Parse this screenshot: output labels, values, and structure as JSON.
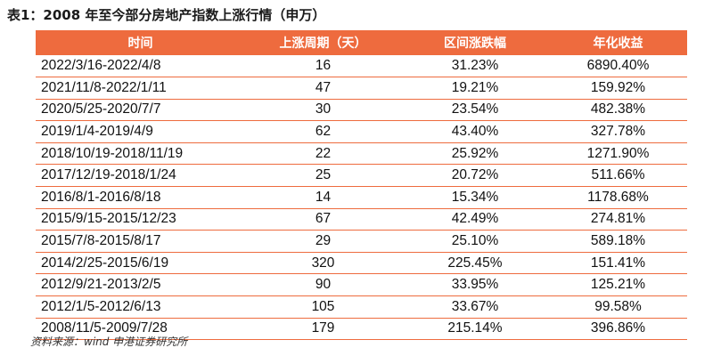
{
  "caption": "表1：2008 年至今部分房地产指数上涨行情（申万）",
  "table": {
    "headers": [
      "时间",
      "上涨周期（天）",
      "区间涨跌幅",
      "年化收益"
    ],
    "rows": [
      [
        "2022/3/16-2022/4/8",
        "16",
        "31.23%",
        "6890.40%"
      ],
      [
        "2021/11/8-2022/1/11",
        "47",
        "19.21%",
        "159.92%"
      ],
      [
        "2020/5/25-2020/7/7",
        "30",
        "23.54%",
        "482.38%"
      ],
      [
        "2019/1/4-2019/4/9",
        "62",
        "43.40%",
        "327.78%"
      ],
      [
        "2018/10/19-2018/11/19",
        "22",
        "25.92%",
        "1271.90%"
      ],
      [
        "2017/12/19-2018/1/24",
        "25",
        "20.72%",
        "511.66%"
      ],
      [
        "2016/8/1-2016/8/18",
        "14",
        "15.34%",
        "1178.68%"
      ],
      [
        "2015/9/15-2015/12/23",
        "67",
        "42.49%",
        "274.81%"
      ],
      [
        "2015/7/8-2015/8/17",
        "29",
        "25.10%",
        "589.18%"
      ],
      [
        "2014/2/25-2015/6/19",
        "320",
        "225.45%",
        "151.41%"
      ],
      [
        "2012/9/21-2013/2/5",
        "90",
        "33.95%",
        "125.21%"
      ],
      [
        "2012/1/5-2012/6/13",
        "105",
        "33.67%",
        "99.58%"
      ],
      [
        "2008/11/5-2009/7/28",
        "179",
        "215.14%",
        "396.86%"
      ]
    ]
  },
  "source": "资料来源：wind 申港证券研究所",
  "colors": {
    "header_bg": "#ee6b3e",
    "header_text": "#ffffff",
    "row_rule": "#ee6b3e"
  }
}
